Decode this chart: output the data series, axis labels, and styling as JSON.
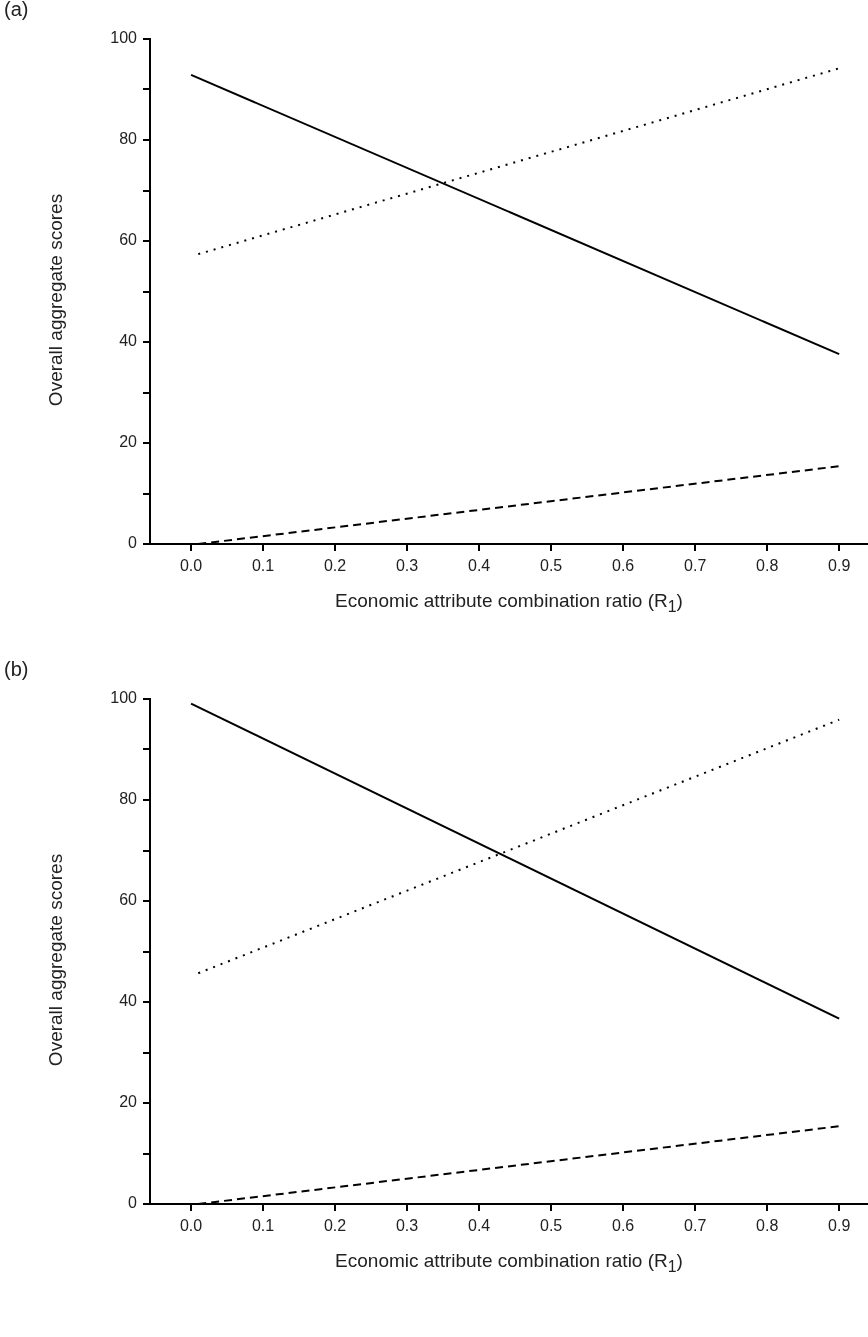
{
  "chart_data": [
    {
      "type": "line",
      "title": "(a)",
      "xlabel": "Economic attribute combination ratio (R$_{1}$)",
      "ylabel": "Overall aggregate scores",
      "series": [
        {
          "color": "#000000",
          "line_style": "solid",
          "x": [
            0.0,
            0.9
          ],
          "values": [
            92.9,
            37.6
          ]
        },
        {
          "color": "#000000",
          "line_style": "dotted",
          "x": [
            0.01,
            0.9
          ],
          "values": [
            57.4,
            94.2
          ]
        },
        {
          "color": "#000000",
          "line_style": "dashed",
          "x": [
            0.01,
            0.9
          ],
          "values": [
            0,
            15.4
          ]
        }
      ],
      "xlim": [
        -0.057,
        0.94
      ],
      "xticks": [
        {
          "value": 0,
          "label": "0.0"
        },
        {
          "value": 0.1,
          "label": "0.1"
        },
        {
          "value": 0.2,
          "label": "0.2"
        },
        {
          "value": 0.3,
          "label": "0.3"
        },
        {
          "value": 0.4,
          "label": "0.4"
        },
        {
          "value": 0.5,
          "label": "0.5"
        },
        {
          "value": 0.6,
          "label": "0.6"
        },
        {
          "value": 0.7,
          "label": "0.7"
        },
        {
          "value": 0.8,
          "label": "0.8"
        },
        {
          "value": 0.9,
          "label": "0.9"
        }
      ],
      "ylim": [
        0,
        100
      ],
      "yticks": [
        0,
        {
          "value": 10,
          "label": null
        },
        20,
        {
          "value": 30,
          "label": null
        },
        40,
        {
          "value": 50,
          "label": null
        },
        60,
        {
          "value": 70,
          "label": null
        },
        80,
        {
          "value": 90,
          "label": null
        },
        100
      ],
      "grid": false,
      "legend": false,
      "marker": "none"
    },
    {
      "type": "line",
      "title": "(b)",
      "xlabel": "Economic attribute combination ratio (R$_{1}$)",
      "ylabel": "Overall aggregate scores",
      "series": [
        {
          "color": "#000000",
          "line_style": "solid",
          "x": [
            0.0,
            0.9
          ],
          "values": [
            99.1,
            36.7
          ]
        },
        {
          "color": "#000000",
          "line_style": "dotted",
          "x": [
            0.01,
            0.9
          ],
          "values": [
            45.7,
            95.9
          ]
        },
        {
          "color": "#000000",
          "line_style": "dashed",
          "x": [
            0.01,
            0.9
          ],
          "values": [
            0,
            15.4
          ]
        }
      ],
      "xlim": [
        -0.057,
        0.94
      ],
      "xticks": [
        {
          "value": 0,
          "label": "0.0"
        },
        {
          "value": 0.1,
          "label": "0.1"
        },
        {
          "value": 0.2,
          "label": "0.2"
        },
        {
          "value": 0.3,
          "label": "0.3"
        },
        {
          "value": 0.4,
          "label": "0.4"
        },
        {
          "value": 0.5,
          "label": "0.5"
        },
        {
          "value": 0.6,
          "label": "0.6"
        },
        {
          "value": 0.7,
          "label": "0.7"
        },
        {
          "value": 0.8,
          "label": "0.8"
        },
        {
          "value": 0.9,
          "label": "0.9"
        }
      ],
      "ylim": [
        0,
        100
      ],
      "yticks": [
        0,
        {
          "value": 10,
          "label": null
        },
        20,
        {
          "value": 30,
          "label": null
        },
        40,
        {
          "value": 50,
          "label": null
        },
        60,
        {
          "value": 70,
          "label": null
        },
        80,
        {
          "value": 90,
          "label": null
        },
        100
      ],
      "grid": false,
      "legend": false,
      "marker": "none"
    }
  ]
}
